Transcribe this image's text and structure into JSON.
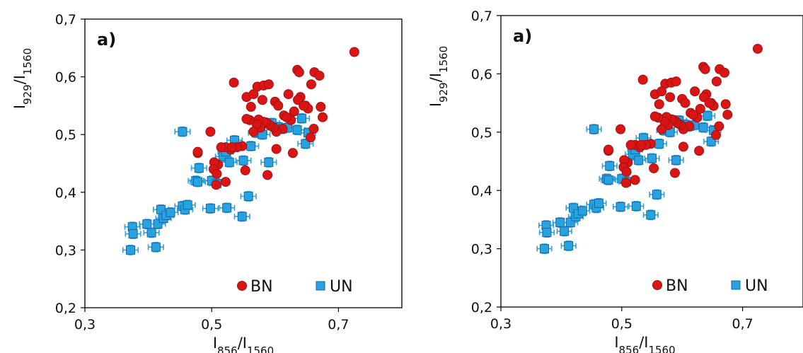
{
  "colors": {
    "bn_fill": "#d91515",
    "bn_edge": "#a50f0f",
    "un_fill": "#29a3df",
    "un_edge": "#1467a8",
    "error_bar": "#29a3df"
  },
  "chart_data": [
    {
      "type": "scatter",
      "panel_label": "a)",
      "xlabel": "I856/I1560",
      "ylabel": "I929/I1560",
      "xlim": [
        0.3,
        0.8
      ],
      "ylim": [
        0.2,
        0.7
      ],
      "x_ticks": [
        "0,3",
        "0,5",
        "0,7"
      ],
      "y_ticks": [
        "0,2",
        "0,3",
        "0,4",
        "0,5",
        "0,6",
        "0,7"
      ],
      "legend_position": "bottom-right",
      "series": [
        {
          "name": "BN",
          "marker": "circle",
          "x": [
            0.725,
            0.535,
            0.572,
            0.582,
            0.59,
            0.562,
            0.555,
            0.566,
            0.58,
            0.6,
            0.605,
            0.614,
            0.621,
            0.635,
            0.638,
            0.64,
            0.636,
            0.648,
            0.657,
            0.662,
            0.67,
            0.672,
            0.652,
            0.645,
            0.63,
            0.625,
            0.618,
            0.612,
            0.602,
            0.598,
            0.593,
            0.59,
            0.586,
            0.582,
            0.577,
            0.574,
            0.571,
            0.566,
            0.56,
            0.555,
            0.548,
            0.54,
            0.53,
            0.522,
            0.515,
            0.51,
            0.504,
            0.498,
            0.478,
            0.478,
            0.503,
            0.508,
            0.507,
            0.522,
            0.532,
            0.553,
            0.588,
            0.602,
            0.628,
            0.661,
            0.675,
            0.656
          ],
          "y": [
            0.643,
            0.59,
            0.583,
            0.585,
            0.587,
            0.548,
            0.565,
            0.57,
            0.56,
            0.557,
            0.55,
            0.533,
            0.57,
            0.612,
            0.608,
            0.565,
            0.56,
            0.55,
            0.587,
            0.608,
            0.602,
            0.548,
            0.545,
            0.55,
            0.54,
            0.525,
            0.53,
            0.51,
            0.505,
            0.512,
            0.515,
            0.518,
            0.521,
            0.522,
            0.512,
            0.526,
            0.518,
            0.505,
            0.525,
            0.527,
            0.48,
            0.478,
            0.474,
            0.478,
            0.478,
            0.448,
            0.452,
            0.505,
            0.468,
            0.47,
            0.44,
            0.432,
            0.413,
            0.418,
            0.478,
            0.438,
            0.43,
            0.475,
            0.468,
            0.51,
            0.53,
            0.495
          ]
        },
        {
          "name": "UN",
          "marker": "square",
          "x": [
            0.372,
            0.375,
            0.376,
            0.398,
            0.405,
            0.412,
            0.415,
            0.42,
            0.424,
            0.428,
            0.435,
            0.454,
            0.458,
            0.462,
            0.475,
            0.478,
            0.48,
            0.498,
            0.5,
            0.508,
            0.518,
            0.522,
            0.524,
            0.528,
            0.536,
            0.548,
            0.55,
            0.558,
            0.562,
            0.57,
            0.575,
            0.58,
            0.59,
            0.595,
            0.605,
            0.612,
            0.62,
            0.635,
            0.642,
            0.648,
            0.652,
            0.454
          ],
          "y": [
            0.3,
            0.34,
            0.328,
            0.345,
            0.33,
            0.305,
            0.345,
            0.37,
            0.355,
            0.36,
            0.365,
            0.376,
            0.37,
            0.378,
            0.42,
            0.418,
            0.442,
            0.372,
            0.42,
            0.415,
            0.462,
            0.47,
            0.373,
            0.452,
            0.49,
            0.358,
            0.455,
            0.393,
            0.48,
            0.503,
            0.505,
            0.5,
            0.452,
            0.52,
            0.513,
            0.51,
            0.512,
            0.508,
            0.528,
            0.484,
            0.503,
            0.505
          ],
          "x_error": 0.012,
          "y_error": 0.008
        }
      ]
    },
    {
      "type": "scatter",
      "panel_label": "a)",
      "xlabel": "I856/I1560",
      "ylabel": "I929/I1560",
      "xlim": [
        0.3,
        0.8
      ],
      "ylim": [
        0.2,
        0.7
      ],
      "x_ticks": [
        "0,3",
        "0,5",
        "0,7"
      ],
      "y_ticks": [
        "0,2",
        "0,3",
        "0,4",
        "0,5",
        "0,6",
        "0,7"
      ],
      "legend_position": "bottom-right",
      "series": [
        {
          "name": "BN",
          "marker": "circle",
          "x": [
            0.725,
            0.535,
            0.572,
            0.582,
            0.59,
            0.562,
            0.555,
            0.566,
            0.58,
            0.6,
            0.605,
            0.614,
            0.621,
            0.635,
            0.638,
            0.64,
            0.636,
            0.648,
            0.657,
            0.662,
            0.67,
            0.672,
            0.652,
            0.645,
            0.63,
            0.625,
            0.618,
            0.612,
            0.602,
            0.598,
            0.593,
            0.59,
            0.586,
            0.582,
            0.577,
            0.574,
            0.571,
            0.566,
            0.56,
            0.555,
            0.548,
            0.54,
            0.53,
            0.522,
            0.515,
            0.51,
            0.504,
            0.498,
            0.478,
            0.478,
            0.503,
            0.508,
            0.507,
            0.522,
            0.532,
            0.553,
            0.588,
            0.602,
            0.628,
            0.661,
            0.675,
            0.656
          ],
          "y": [
            0.643,
            0.59,
            0.583,
            0.585,
            0.587,
            0.548,
            0.565,
            0.57,
            0.56,
            0.557,
            0.55,
            0.533,
            0.57,
            0.612,
            0.608,
            0.565,
            0.56,
            0.55,
            0.587,
            0.608,
            0.602,
            0.548,
            0.545,
            0.55,
            0.54,
            0.525,
            0.53,
            0.51,
            0.505,
            0.512,
            0.515,
            0.518,
            0.521,
            0.522,
            0.512,
            0.526,
            0.518,
            0.505,
            0.525,
            0.527,
            0.48,
            0.478,
            0.474,
            0.478,
            0.478,
            0.448,
            0.452,
            0.505,
            0.468,
            0.47,
            0.44,
            0.432,
            0.413,
            0.418,
            0.478,
            0.438,
            0.43,
            0.475,
            0.468,
            0.51,
            0.53,
            0.495
          ]
        },
        {
          "name": "UN",
          "marker": "square",
          "x": [
            0.372,
            0.375,
            0.376,
            0.398,
            0.405,
            0.412,
            0.415,
            0.42,
            0.424,
            0.428,
            0.435,
            0.454,
            0.458,
            0.462,
            0.475,
            0.478,
            0.48,
            0.498,
            0.5,
            0.508,
            0.518,
            0.522,
            0.524,
            0.528,
            0.536,
            0.548,
            0.55,
            0.558,
            0.562,
            0.57,
            0.575,
            0.58,
            0.59,
            0.595,
            0.605,
            0.612,
            0.62,
            0.635,
            0.642,
            0.648,
            0.652,
            0.454
          ],
          "y": [
            0.3,
            0.34,
            0.328,
            0.345,
            0.33,
            0.305,
            0.345,
            0.37,
            0.355,
            0.36,
            0.365,
            0.376,
            0.37,
            0.378,
            0.42,
            0.418,
            0.442,
            0.372,
            0.42,
            0.415,
            0.462,
            0.47,
            0.373,
            0.452,
            0.49,
            0.358,
            0.455,
            0.393,
            0.48,
            0.503,
            0.505,
            0.5,
            0.452,
            0.52,
            0.513,
            0.51,
            0.512,
            0.508,
            0.528,
            0.484,
            0.503,
            0.505
          ],
          "x_error": 0.012,
          "y_error": 0.008
        }
      ]
    }
  ]
}
